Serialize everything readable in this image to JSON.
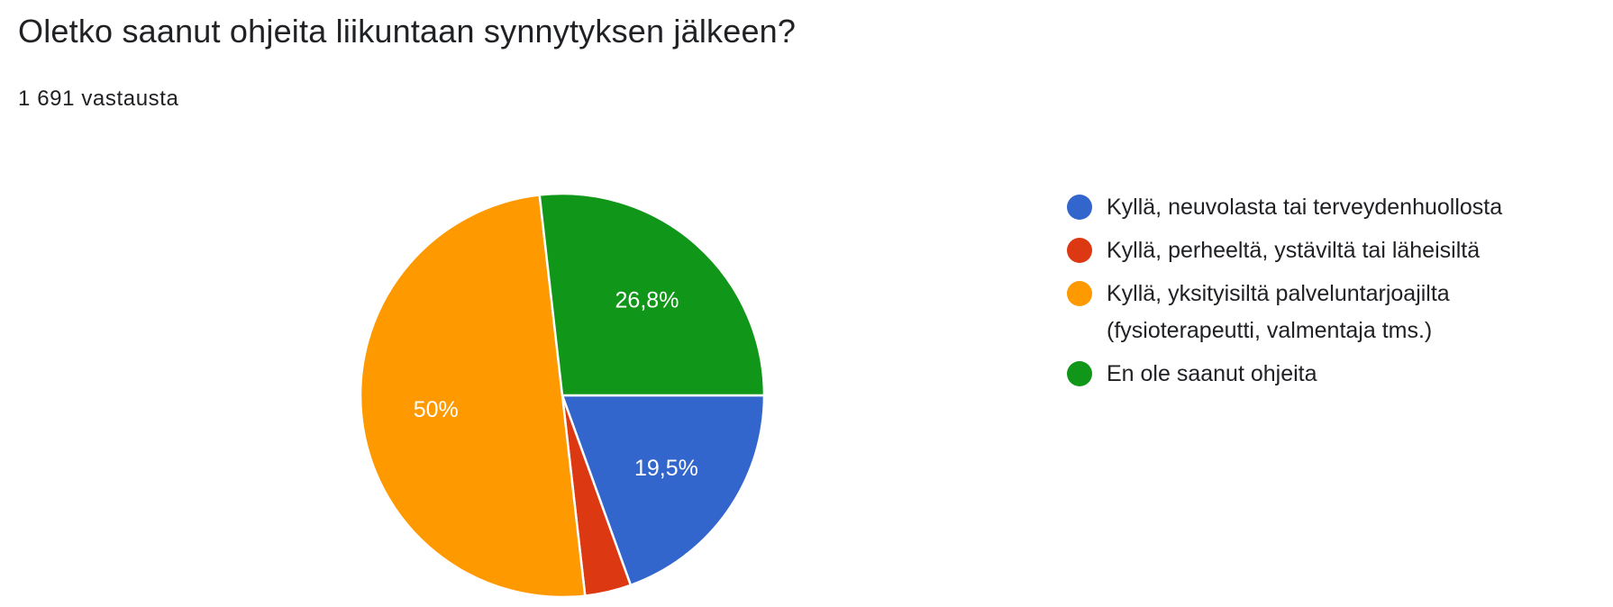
{
  "header": {
    "title": "Oletko saanut ohjeita liikuntaan synnytyksen jälkeen?",
    "response_count": "1 691 vastausta"
  },
  "chart_data": {
    "type": "pie",
    "title": "Oletko saanut ohjeita liikuntaan synnytyksen jälkeen?",
    "slices": [
      {
        "label": "Kyllä, neuvolasta tai terveydenhuollosta",
        "legend_lines": [
          "Kyllä, neuvolasta tai terveydenhuollosta"
        ],
        "value": 19.5,
        "display": "19,5%",
        "color": "#3366cc"
      },
      {
        "label": "Kyllä, perheeltä, ystäviltä tai läheisiltä",
        "legend_lines": [
          "Kyllä, perheeltä, ystäviltä tai läheisiltä"
        ],
        "value": 3.7,
        "display": "",
        "color": "#dc3912"
      },
      {
        "label": "Kyllä, yksityisiltä palveluntarjoajilta (fysioterapeutti, valmentaja tms.)",
        "legend_lines": [
          "Kyllä, yksityisiltä palveluntarjoajilta",
          "(fysioterapeutti, valmentaja tms.)"
        ],
        "value": 50,
        "display": "50%",
        "color": "#ff9900"
      },
      {
        "label": "En ole saanut ohjeita",
        "legend_lines": [
          "En ole saanut ohjeita"
        ],
        "value": 26.8,
        "display": "26,8%",
        "color": "#109618"
      }
    ],
    "legend_position": "right",
    "start_angle": "3 o'clock, clockwise"
  }
}
